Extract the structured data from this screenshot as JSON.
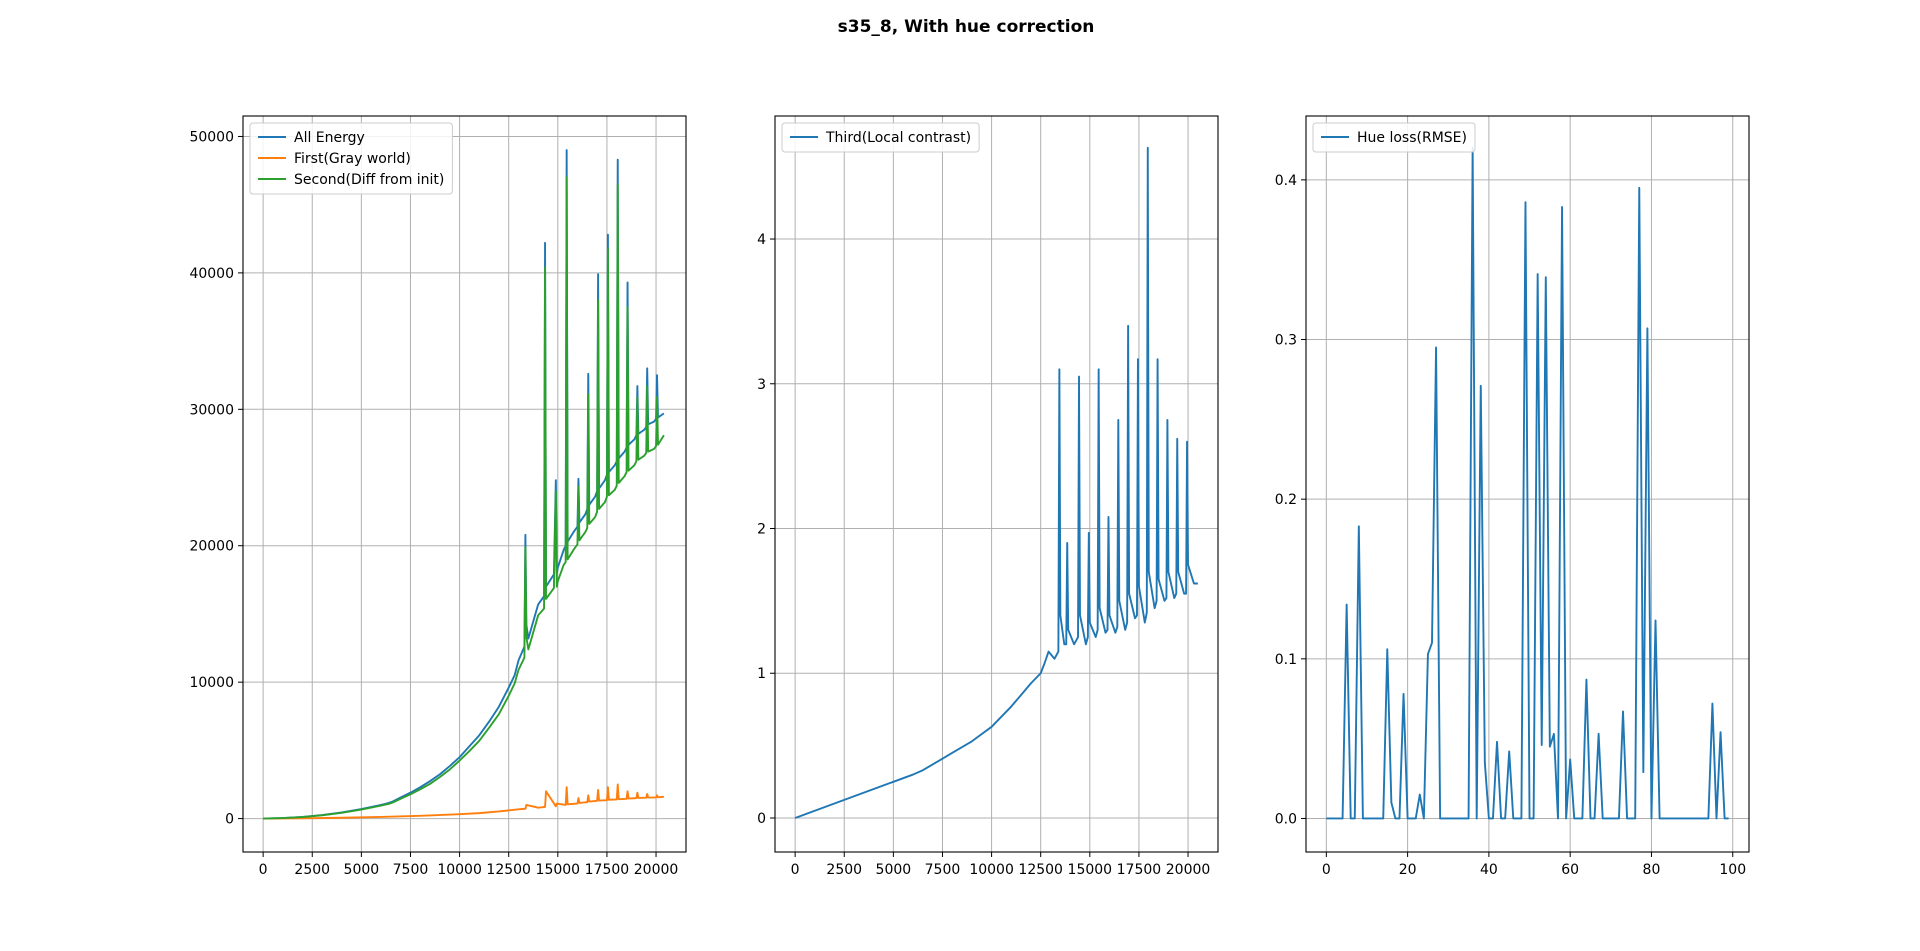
{
  "figure_title": "s35_8, With hue correction",
  "colors": {
    "series_blue": "#1f77b4",
    "series_orange": "#ff7f0e",
    "series_green": "#2ca02c",
    "grid": "#b0b0b0",
    "axes": "#000000"
  },
  "chart_data": [
    {
      "type": "line",
      "title": "",
      "xlabel": "",
      "ylabel": "",
      "xlim": [
        -1025,
        21525
      ],
      "ylim": [
        -2450,
        51500
      ],
      "xticks": [
        0,
        2500,
        5000,
        7500,
        10000,
        12500,
        15000,
        17500,
        20000
      ],
      "yticks": [
        0,
        10000,
        20000,
        30000,
        40000,
        50000
      ],
      "grid": true,
      "legend_position": "upper-left",
      "series": [
        {
          "name": "All Energy",
          "color": "#1f77b4",
          "x": [
            0,
            1000,
            2000,
            3000,
            4000,
            5000,
            6000,
            6400,
            6600,
            7000,
            7500,
            8000,
            8500,
            9000,
            9500,
            10000,
            10500,
            11000,
            11500,
            12000,
            12500,
            12800,
            13000,
            13300,
            13350,
            13400,
            13500,
            13800,
            14000,
            14300,
            14350,
            14400,
            14800,
            14900,
            14950,
            15000,
            15300,
            15400,
            15450,
            15500,
            15800,
            16000,
            16050,
            16100,
            16400,
            16500,
            16550,
            16600,
            16900,
            17000,
            17050,
            17100,
            17400,
            17500,
            17550,
            17600,
            17900,
            18000,
            18050,
            18100,
            18400,
            18500,
            18550,
            18600,
            18900,
            19000,
            19050,
            19100,
            19400,
            19500,
            19550,
            19600,
            19900,
            20000,
            20050,
            20100,
            20400
          ],
          "y": [
            0,
            40,
            120,
            260,
            450,
            700,
            1000,
            1150,
            1250,
            1550,
            1900,
            2300,
            2750,
            3250,
            3850,
            4500,
            5300,
            6100,
            7100,
            8200,
            9600,
            10500,
            11600,
            12600,
            20800,
            14200,
            13200,
            14700,
            15700,
            16300,
            42200,
            17000,
            17900,
            24800,
            18000,
            18400,
            19700,
            20000,
            49000,
            20300,
            21000,
            21400,
            24900,
            21700,
            22300,
            22700,
            32600,
            23000,
            23600,
            24000,
            39900,
            24200,
            24800,
            25200,
            42800,
            25400,
            25900,
            26200,
            48300,
            26400,
            26900,
            27200,
            39300,
            27400,
            27800,
            28100,
            31700,
            28200,
            28500,
            28700,
            33000,
            28900,
            29100,
            29300,
            32500,
            29400,
            29700
          ]
        },
        {
          "name": "First(Gray world)",
          "color": "#ff7f0e",
          "x": [
            0,
            2000,
            4000,
            6000,
            8000,
            10000,
            11000,
            12000,
            13000,
            13350,
            13400,
            14000,
            14350,
            14400,
            14900,
            14950,
            15400,
            15450,
            15500,
            16000,
            16050,
            16100,
            16500,
            16550,
            16600,
            17000,
            17050,
            17100,
            17500,
            17550,
            17600,
            18000,
            18050,
            18100,
            18500,
            18550,
            18600,
            19000,
            19050,
            19100,
            19500,
            19550,
            19600,
            20000,
            20050,
            20100,
            20400
          ],
          "y": [
            0,
            20,
            60,
            120,
            200,
            320,
            400,
            520,
            680,
            720,
            1000,
            800,
            850,
            2000,
            900,
            1100,
            1000,
            2300,
            1050,
            1100,
            1500,
            1150,
            1200,
            1700,
            1250,
            1300,
            2100,
            1320,
            1350,
            2300,
            1380,
            1400,
            2500,
            1420,
            1450,
            2000,
            1470,
            1500,
            1900,
            1510,
            1530,
            1800,
            1540,
            1550,
            1700,
            1560,
            1600
          ]
        },
        {
          "name": "Second(Diff from init)",
          "color": "#2ca02c",
          "x": [
            0,
            1000,
            2000,
            3000,
            4000,
            5000,
            6000,
            6400,
            6600,
            7000,
            7500,
            8000,
            8500,
            9000,
            9500,
            10000,
            10500,
            11000,
            11500,
            12000,
            12500,
            12800,
            13000,
            13300,
            13350,
            13400,
            13500,
            13800,
            14000,
            14300,
            14350,
            14400,
            14800,
            14900,
            14950,
            15000,
            15300,
            15400,
            15450,
            15500,
            15800,
            16000,
            16050,
            16100,
            16400,
            16500,
            16550,
            16600,
            16900,
            17000,
            17050,
            17100,
            17400,
            17500,
            17550,
            17600,
            17900,
            18000,
            18050,
            18100,
            18400,
            18500,
            18550,
            18600,
            18900,
            19000,
            19050,
            19100,
            19400,
            19500,
            19550,
            19600,
            19900,
            20000,
            20050,
            20100,
            20400
          ],
          "y": [
            0,
            40,
            110,
            240,
            420,
            660,
            950,
            1080,
            1180,
            1450,
            1780,
            2150,
            2550,
            3050,
            3600,
            4250,
            4950,
            5700,
            6650,
            7650,
            9000,
            9900,
            10900,
            11800,
            19900,
            13300,
            12400,
            13900,
            14900,
            15400,
            40400,
            16100,
            16900,
            24000,
            17000,
            17400,
            18600,
            18800,
            47000,
            19000,
            19700,
            20100,
            24300,
            20400,
            21000,
            21300,
            31100,
            21600,
            22100,
            22500,
            38000,
            22700,
            23200,
            23600,
            41800,
            23700,
            24100,
            24400,
            46500,
            24600,
            25100,
            25400,
            37500,
            25500,
            25900,
            26200,
            30900,
            26300,
            26600,
            26800,
            31700,
            26900,
            27100,
            27300,
            30900,
            27400,
            28100
          ]
        }
      ]
    },
    {
      "type": "line",
      "title": "",
      "xlabel": "",
      "ylabel": "",
      "xlim": [
        -1025,
        21525
      ],
      "ylim": [
        -0.235,
        4.85
      ],
      "xticks": [
        0,
        2500,
        5000,
        7500,
        10000,
        12500,
        15000,
        17500,
        20000
      ],
      "yticks": [
        0,
        1,
        2,
        3,
        4
      ],
      "grid": true,
      "legend_position": "upper-left",
      "series": [
        {
          "name": "Third(Local contrast)",
          "color": "#1f77b4",
          "x": [
            0,
            1000,
            2000,
            3000,
            4000,
            5000,
            6000,
            6500,
            7000,
            7500,
            8000,
            8500,
            9000,
            9500,
            10000,
            10500,
            11000,
            11500,
            12000,
            12500,
            12700,
            12900,
            13200,
            13400,
            13450,
            13500,
            13700,
            13800,
            13850,
            13900,
            14200,
            14400,
            14450,
            14500,
            14800,
            14900,
            14950,
            15000,
            15300,
            15400,
            15450,
            15500,
            15800,
            15900,
            15950,
            16000,
            16300,
            16400,
            16450,
            16500,
            16800,
            16900,
            16950,
            17000,
            17300,
            17400,
            17450,
            17500,
            17800,
            17900,
            17950,
            18000,
            18300,
            18400,
            18450,
            18500,
            18800,
            18900,
            18950,
            19000,
            19300,
            19400,
            19450,
            19500,
            19800,
            19900,
            19950,
            20000,
            20300,
            20500
          ],
          "y": [
            0,
            0.05,
            0.1,
            0.15,
            0.2,
            0.25,
            0.3,
            0.33,
            0.37,
            0.41,
            0.45,
            0.49,
            0.53,
            0.58,
            0.63,
            0.7,
            0.77,
            0.85,
            0.93,
            1.0,
            1.07,
            1.15,
            1.1,
            1.15,
            3.1,
            1.4,
            1.2,
            1.2,
            1.9,
            1.3,
            1.2,
            1.25,
            3.05,
            1.4,
            1.2,
            1.25,
            1.97,
            1.35,
            1.25,
            1.3,
            3.1,
            1.45,
            1.28,
            1.3,
            2.08,
            1.4,
            1.28,
            1.32,
            2.75,
            1.5,
            1.3,
            1.35,
            3.4,
            1.55,
            1.38,
            1.4,
            3.17,
            1.6,
            1.35,
            1.42,
            4.63,
            1.7,
            1.45,
            1.5,
            3.17,
            1.65,
            1.5,
            1.52,
            2.75,
            1.7,
            1.52,
            1.55,
            2.62,
            1.7,
            1.55,
            1.55,
            2.6,
            1.75,
            1.62,
            1.62
          ]
        }
      ]
    },
    {
      "type": "line",
      "title": "",
      "xlabel": "",
      "ylabel": "",
      "xlim": [
        -5,
        104
      ],
      "ylim": [
        -0.021,
        0.44
      ],
      "xticks": [
        0,
        20,
        40,
        60,
        80,
        100
      ],
      "yticks": [
        0.0,
        0.1,
        0.2,
        0.3,
        0.4
      ],
      "ytick_labels": [
        "0.0",
        "0.1",
        "0.2",
        "0.3",
        "0.4"
      ],
      "grid": true,
      "legend_position": "upper-left",
      "series": [
        {
          "name": "Hue loss(RMSE)",
          "color": "#1f77b4",
          "x": [
            0,
            1,
            2,
            3,
            4,
            5,
            6,
            7,
            8,
            9,
            10,
            11,
            12,
            13,
            14,
            15,
            16,
            17,
            18,
            19,
            20,
            21,
            22,
            23,
            24,
            25,
            26,
            27,
            28,
            29,
            30,
            31,
            32,
            33,
            34,
            35,
            36,
            37,
            38,
            39,
            40,
            41,
            42,
            43,
            44,
            45,
            46,
            47,
            48,
            49,
            50,
            51,
            52,
            53,
            54,
            55,
            56,
            57,
            58,
            59,
            60,
            61,
            62,
            63,
            64,
            65,
            66,
            67,
            68,
            69,
            70,
            71,
            72,
            73,
            74,
            75,
            76,
            77,
            78,
            79,
            80,
            81,
            82,
            83,
            84,
            85,
            86,
            87,
            88,
            89,
            90,
            91,
            92,
            93,
            94,
            95,
            96,
            97,
            98,
            99
          ],
          "y": [
            0,
            0,
            0,
            0,
            0,
            0.134,
            0,
            0,
            0.183,
            0,
            0,
            0,
            0,
            0,
            0,
            0.106,
            0.01,
            0,
            0,
            0.078,
            0,
            0,
            0,
            0.015,
            0,
            0.103,
            0.11,
            0.295,
            0,
            0,
            0,
            0,
            0,
            0,
            0,
            0,
            0.42,
            0,
            0.271,
            0.035,
            0,
            0,
            0.048,
            0,
            0,
            0.042,
            0,
            0,
            0,
            0.386,
            0,
            0,
            0.341,
            0.046,
            0.339,
            0.045,
            0.053,
            0,
            0.383,
            0,
            0.037,
            0,
            0,
            0,
            0.087,
            0,
            0,
            0.053,
            0,
            0,
            0,
            0,
            0,
            0.067,
            0,
            0,
            0,
            0.395,
            0.029,
            0.307,
            0,
            0.124,
            0,
            0,
            0,
            0,
            0,
            0,
            0,
            0,
            0,
            0,
            0,
            0,
            0,
            0.072,
            0,
            0.054,
            0,
            0
          ]
        }
      ]
    }
  ]
}
